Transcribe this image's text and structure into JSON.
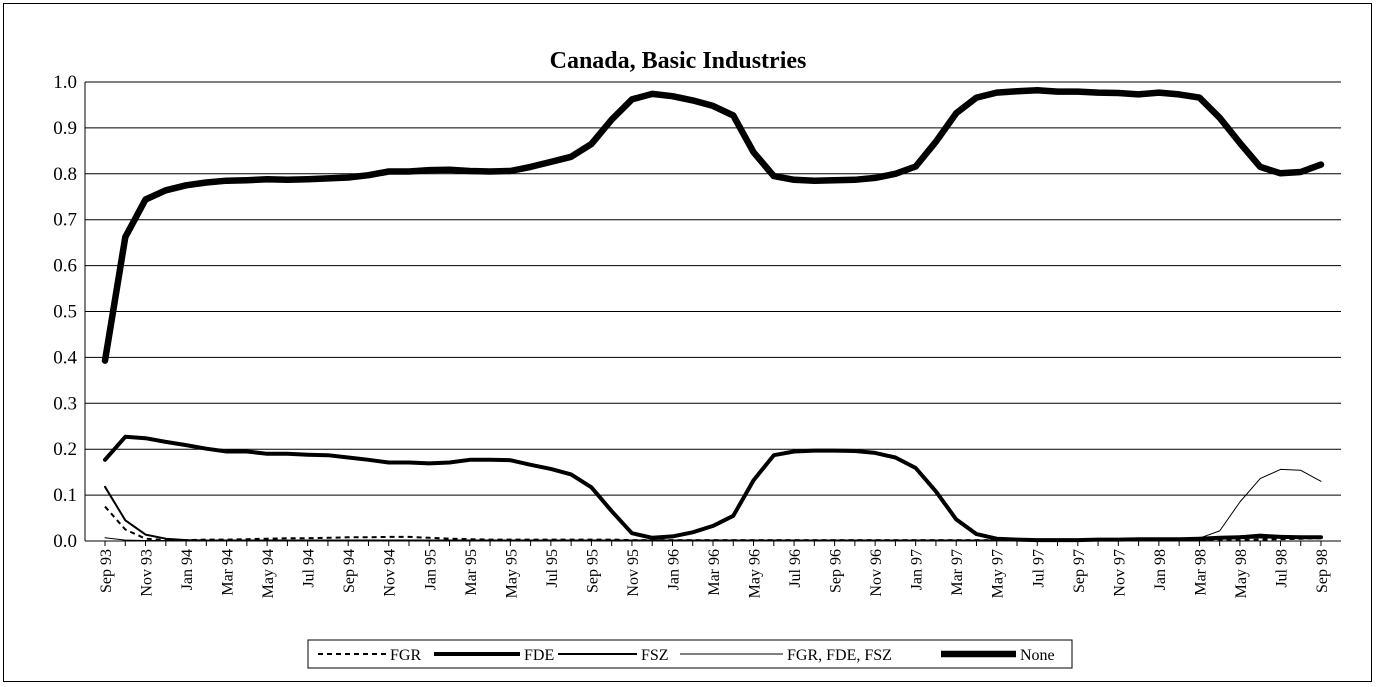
{
  "chart_data": {
    "type": "line",
    "title": "Canada, Basic Industries",
    "ylim": [
      0,
      1
    ],
    "yticks": [
      "0.0",
      "0.1",
      "0.2",
      "0.3",
      "0.4",
      "0.5",
      "0.6",
      "0.7",
      "0.8",
      "0.9",
      "1.0"
    ],
    "x_tick_labels": [
      "Sep 93",
      "Nov 93",
      "Jan 94",
      "Mar 94",
      "May 94",
      "Jul 94",
      "Sep 94",
      "Nov 94",
      "Jan 95",
      "Mar 95",
      "May 95",
      "Jul 95",
      "Sep 95",
      "Nov 95",
      "Jan 96",
      "Mar 96",
      "May 96",
      "Jul 96",
      "Sep 96",
      "Nov 96",
      "Jan 97",
      "Mar 97",
      "May 97",
      "Jul 97",
      "Sep 97",
      "Nov 97",
      "Jan 98",
      "Mar 98",
      "May 98",
      "Jul 98",
      "Sep 98"
    ],
    "x": [
      "Sep 93",
      "Oct 93",
      "Nov 93",
      "Dec 93",
      "Jan 94",
      "Feb 94",
      "Mar 94",
      "Apr 94",
      "May 94",
      "Jun 94",
      "Jul 94",
      "Aug 94",
      "Sep 94",
      "Oct 94",
      "Nov 94",
      "Dec 94",
      "Jan 95",
      "Feb 95",
      "Mar 95",
      "Apr 95",
      "May 95",
      "Jun 95",
      "Jul 95",
      "Aug 95",
      "Sep 95",
      "Oct 95",
      "Nov 95",
      "Dec 95",
      "Jan 96",
      "Feb 96",
      "Mar 96",
      "Apr 96",
      "May 96",
      "Jun 96",
      "Jul 96",
      "Aug 96",
      "Sep 96",
      "Oct 96",
      "Nov 96",
      "Dec 96",
      "Jan 97",
      "Feb 97",
      "Mar 97",
      "Apr 97",
      "May 97",
      "Jun 97",
      "Jul 97",
      "Aug 97",
      "Sep 97",
      "Oct 97",
      "Nov 97",
      "Dec 97",
      "Jan 98",
      "Feb 98",
      "Mar 98",
      "Apr 98",
      "May 98",
      "Jun 98",
      "Jul 98",
      "Aug 98",
      "Sep 98"
    ],
    "grid": true,
    "legend_position": "bottom",
    "series": [
      {
        "name": "FGR",
        "style": "dashed",
        "values": [
          0.075,
          0.025,
          0.005,
          0.002,
          0.002,
          0.003,
          0.003,
          0.004,
          0.005,
          0.006,
          0.006,
          0.007,
          0.008,
          0.008,
          0.009,
          0.009,
          0.007,
          0.005,
          0.004,
          0.003,
          0.003,
          0.003,
          0.003,
          0.003,
          0.003,
          0.003,
          0.002,
          0.002,
          0.002,
          0.002,
          0.002,
          0.002,
          0.002,
          0.002,
          0.002,
          0.002,
          0.002,
          0.002,
          0.002,
          0.002,
          0.002,
          0.002,
          0.002,
          0.002,
          0.002,
          0.002,
          0.002,
          0.002,
          0.002,
          0.002,
          0.002,
          0.002,
          0.002,
          0.002,
          0.002,
          0.002,
          0.002,
          0.003,
          0.004,
          0.005,
          0.006
        ]
      },
      {
        "name": "FDE",
        "style": "thick",
        "values": [
          0.177,
          0.227,
          0.224,
          0.216,
          0.209,
          0.201,
          0.195,
          0.195,
          0.19,
          0.19,
          0.188,
          0.187,
          0.182,
          0.177,
          0.171,
          0.171,
          0.169,
          0.171,
          0.177,
          0.177,
          0.176,
          0.166,
          0.157,
          0.145,
          0.117,
          0.065,
          0.017,
          0.007,
          0.01,
          0.019,
          0.033,
          0.055,
          0.132,
          0.187,
          0.195,
          0.197,
          0.197,
          0.196,
          0.192,
          0.182,
          0.159,
          0.108,
          0.047,
          0.015,
          0.005,
          0.003,
          0.002,
          0.002,
          0.002,
          0.003,
          0.003,
          0.004,
          0.004,
          0.004,
          0.005,
          0.007,
          0.008,
          0.01,
          0.009,
          0.008,
          0.008
        ]
      },
      {
        "name": "FSZ",
        "style": "medium",
        "values": [
          0.118,
          0.045,
          0.014,
          0.005,
          0.002,
          0.001,
          0.001,
          0.001,
          0.001,
          0.001,
          0.001,
          0.001,
          0.001,
          0.001,
          0.001,
          0.001,
          0.001,
          0.001,
          0.001,
          0.001,
          0.001,
          0.001,
          0.001,
          0.001,
          0.001,
          0.001,
          0.001,
          0.001,
          0.001,
          0.001,
          0.001,
          0.001,
          0.001,
          0.001,
          0.001,
          0.001,
          0.001,
          0.001,
          0.001,
          0.001,
          0.001,
          0.001,
          0.001,
          0.001,
          0.001,
          0.001,
          0.001,
          0.001,
          0.001,
          0.001,
          0.001,
          0.001,
          0.001,
          0.002,
          0.005,
          0.008,
          0.01,
          0.014,
          0.011,
          0.008,
          0.008
        ]
      },
      {
        "name": "FGR, FDE, FSZ",
        "style": "thin",
        "values": [
          0.007,
          0.002,
          0.001,
          0.001,
          0.001,
          0.001,
          0.001,
          0.001,
          0.001,
          0.001,
          0.001,
          0.001,
          0.001,
          0.001,
          0.001,
          0.001,
          0.001,
          0.001,
          0.001,
          0.001,
          0.001,
          0.001,
          0.001,
          0.001,
          0.001,
          0.001,
          0.001,
          0.001,
          0.001,
          0.001,
          0.001,
          0.001,
          0.001,
          0.001,
          0.001,
          0.001,
          0.001,
          0.001,
          0.001,
          0.001,
          0.001,
          0.001,
          0.001,
          0.001,
          0.001,
          0.001,
          0.001,
          0.001,
          0.001,
          0.001,
          0.001,
          0.001,
          0.001,
          0.002,
          0.006,
          0.022,
          0.085,
          0.136,
          0.156,
          0.154,
          0.13
        ]
      },
      {
        "name": "None",
        "style": "thickest",
        "values": [
          0.393,
          0.662,
          0.744,
          0.764,
          0.775,
          0.781,
          0.785,
          0.786,
          0.788,
          0.787,
          0.788,
          0.79,
          0.792,
          0.797,
          0.805,
          0.805,
          0.808,
          0.809,
          0.806,
          0.805,
          0.806,
          0.815,
          0.826,
          0.837,
          0.865,
          0.918,
          0.962,
          0.974,
          0.969,
          0.96,
          0.948,
          0.927,
          0.847,
          0.795,
          0.787,
          0.785,
          0.786,
          0.787,
          0.791,
          0.8,
          0.816,
          0.87,
          0.932,
          0.966,
          0.977,
          0.98,
          0.982,
          0.979,
          0.979,
          0.977,
          0.976,
          0.973,
          0.977,
          0.973,
          0.966,
          0.922,
          0.867,
          0.815,
          0.801,
          0.804,
          0.82
        ]
      }
    ]
  }
}
